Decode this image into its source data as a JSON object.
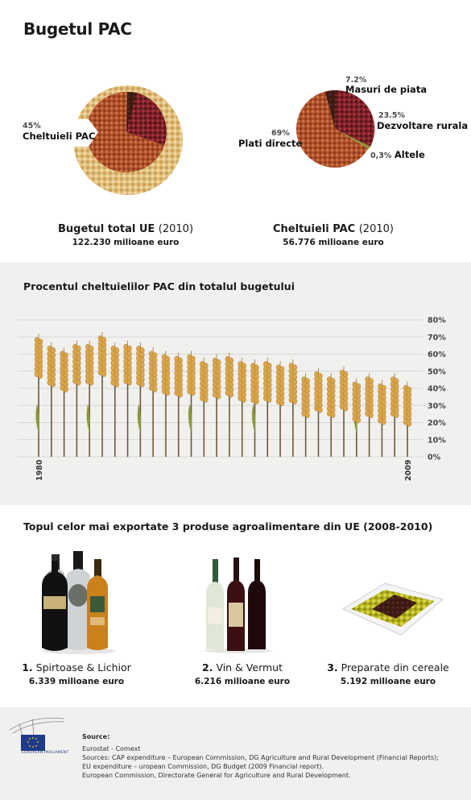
{
  "title": "Bugetul PAC",
  "pies": {
    "left": {
      "slice_pct": "45%",
      "slice_label": "Cheltuieli PAC",
      "caption_bold": "Bugetul total UE",
      "caption_year": "(2010)",
      "value": "122.230 milioane euro"
    },
    "right": {
      "labels": [
        {
          "pct": "7.2%",
          "label": "Masuri de piata"
        },
        {
          "pct": "23.5%",
          "label": "Dezvoltare rurala"
        },
        {
          "pct": "69%",
          "label": "Plati directe"
        },
        {
          "pct": "0,3%",
          "label": "Altele"
        }
      ],
      "caption_bold": "Cheltuieli PAC",
      "caption_year": "(2010)",
      "value": "56.776 milioane euro"
    }
  },
  "band_title": "Procentul cheltuielilor PAC din totalul bugetului",
  "x_first": "1980",
  "x_last": "2009",
  "y_ticks": [
    "80%",
    "70%",
    "60%",
    "50%",
    "40%",
    "30%",
    "20%",
    "10%",
    "0%"
  ],
  "chart_data": [
    {
      "type": "pie",
      "slices": [
        {
          "label": "Cheltuieli PAC",
          "value": 45
        },
        {
          "label": "",
          "value": 55
        }
      ],
      "caption": "Bugetul total UE (2010)",
      "total": "122.230 milioane euro"
    },
    {
      "type": "pie",
      "slices": [
        {
          "label": "Plati directe",
          "value": 69
        },
        {
          "label": "Masuri de piata",
          "value": 7.2
        },
        {
          "label": "Dezvoltare rurala",
          "value": 23.5
        },
        {
          "label": "Altele",
          "value": 0.3
        }
      ],
      "caption": "Cheltuieli PAC (2010)",
      "total": "56.776 milioane euro"
    },
    {
      "type": "bar",
      "title": "Procentul cheltuielilor PAC din totalul bugetului",
      "x": [
        1980,
        1981,
        1982,
        1983,
        1984,
        1985,
        1986,
        1987,
        1988,
        1989,
        1990,
        1991,
        1992,
        1993,
        1994,
        1995,
        1996,
        1997,
        1998,
        1999,
        2000,
        2001,
        2002,
        2003,
        2004,
        2005,
        2006,
        2007,
        2008,
        2009
      ],
      "values": [
        70,
        65,
        62,
        66,
        66,
        71,
        65,
        66,
        65,
        62,
        60,
        59,
        60,
        56,
        58,
        59,
        56,
        55,
        56,
        54,
        55,
        47,
        50,
        47,
        51,
        44,
        47,
        43,
        47,
        42
      ],
      "ylim": [
        0,
        80
      ],
      "grid": true,
      "y_axis": "right"
    }
  ],
  "products_title": "Topul celor mai exportate 3 produse agroalimentare din UE (2008-2010)",
  "products": [
    {
      "rank": "1.",
      "name": "Spirtoase & Lichior",
      "value": "6.339 milioane euro"
    },
    {
      "rank": "2.",
      "name": "Vin & Vermut",
      "value": "6.216 milioane euro"
    },
    {
      "rank": "3.",
      "name": "Preparate din cereale",
      "value": "5.192 milioane euro"
    }
  ],
  "footer": {
    "logo_text": "EUROPEAN PARLIAMENT",
    "source_head": "Source:",
    "lines": [
      "Eurostat - Comext",
      "Sources: CAP expenditure – European Commission, DG Agriculture and Rural Development (Financial Reports);",
      "EU expenditure – uropean Commission, DG Budget (2009 Financial report).",
      "European Commission, Directorate General for Agriculture and Rural Development."
    ]
  },
  "colors": {
    "wheat": "#d9a64a",
    "wheat_dark": "#a8742a",
    "stem": "#6b5a3a",
    "leaf": "#8a9a3a",
    "grain_light": "#e6c98a",
    "grain_red": "#b8542a",
    "grain_dark": "#6a1e22",
    "band": "#f0f0ef",
    "eu_blue": "#1f3a8a"
  }
}
